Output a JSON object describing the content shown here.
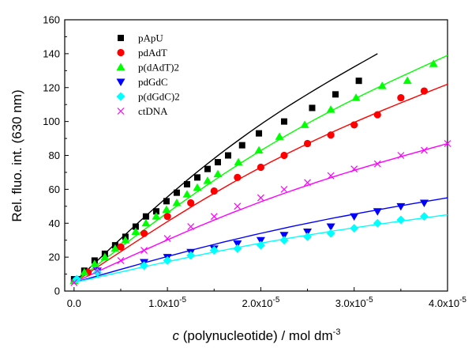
{
  "chart_data": {
    "type": "scatter",
    "title": "",
    "xlabel": {
      "symbol": "c",
      "rest": " (polynucleotide) / mol dm",
      "sup": "-3"
    },
    "ylabel": "Rel. fluo. int. (630 nm)",
    "xlim": [
      -1e-06,
      4e-05
    ],
    "ylim": [
      0,
      160
    ],
    "x_ticks": [
      {
        "value": 0,
        "mant": "0.0",
        "exp": ""
      },
      {
        "value": 1e-05,
        "mant": "1.0x10",
        "exp": "-5"
      },
      {
        "value": 2e-05,
        "mant": "2.0x10",
        "exp": "-5"
      },
      {
        "value": 3e-05,
        "mant": "3.0x10",
        "exp": "-5"
      },
      {
        "value": 4e-05,
        "mant": "4.0x10",
        "exp": "-5"
      }
    ],
    "y_ticks": [
      0,
      20,
      40,
      60,
      80,
      100,
      120,
      140,
      160
    ],
    "grid": false,
    "legend_position": "top-left",
    "series": [
      {
        "name": "pApU",
        "marker": "square",
        "color": "#000000",
        "x": [
          0,
          1.1e-06,
          2.2e-06,
          3.3e-06,
          4.4e-06,
          5.5e-06,
          6.6e-06,
          7.7e-06,
          8.8e-06,
          9.9e-06,
          1.1e-05,
          1.21e-05,
          1.32e-05,
          1.43e-05,
          1.54e-05,
          1.65e-05,
          1.8e-05,
          1.98e-05,
          2.25e-05,
          2.55e-05,
          2.8e-05,
          3.05e-05
        ],
        "y": [
          7,
          12,
          18,
          22,
          27,
          32,
          38,
          44,
          47,
          53,
          58,
          63,
          67,
          72,
          76,
          80,
          86,
          93,
          100,
          108,
          116,
          124
        ],
        "fit_x": [
          0,
          3.25e-05
        ],
        "fit_y": [
          5,
          140
        ]
      },
      {
        "name": "pdAdT",
        "marker": "circle",
        "color": "#ff0000",
        "x": [
          1.5e-06,
          5e-06,
          7.5e-06,
          1e-05,
          1.25e-05,
          1.5e-05,
          1.75e-05,
          2e-05,
          2.25e-05,
          2.5e-05,
          2.75e-05,
          3e-05,
          3.25e-05,
          3.5e-05,
          3.75e-05
        ],
        "y": [
          11,
          26,
          34,
          44,
          52,
          59,
          67,
          73,
          80,
          87,
          92,
          98,
          104,
          114,
          118
        ],
        "fit_x": [
          0,
          4e-05
        ],
        "fit_y": [
          5,
          122
        ]
      },
      {
        "name": "p(dAdT)2",
        "marker": "triangle-up",
        "color": "#00ff00",
        "x": [
          0,
          1.1e-06,
          2.2e-06,
          3.3e-06,
          4.4e-06,
          5.5e-06,
          6.6e-06,
          7.7e-06,
          8.8e-06,
          9.9e-06,
          1.1e-05,
          1.21e-05,
          1.32e-05,
          1.43e-05,
          1.54e-05,
          1.76e-05,
          1.98e-05,
          2.2e-05,
          2.47e-05,
          2.75e-05,
          3.02e-05,
          3.3e-05,
          3.57e-05,
          3.85e-05
        ],
        "y": [
          6,
          11,
          16,
          20,
          25,
          30,
          35,
          40,
          44,
          48,
          52,
          57,
          61,
          65,
          69,
          76,
          83,
          91,
          98,
          107,
          114,
          121,
          124,
          134
        ],
        "fit_x": [
          0,
          4e-05
        ],
        "fit_y": [
          5,
          139
        ]
      },
      {
        "name": "pdGdC",
        "marker": "triangle-down",
        "color": "#0000ff",
        "x": [
          3e-07,
          2.5e-06,
          7.5e-06,
          1e-05,
          1.25e-05,
          1.5e-05,
          1.75e-05,
          2e-05,
          2.25e-05,
          2.5e-05,
          2.75e-05,
          3e-05,
          3.25e-05,
          3.5e-05,
          3.75e-05
        ],
        "y": [
          7,
          12,
          17,
          20,
          23,
          25,
          28,
          30,
          33,
          35,
          38,
          44,
          47,
          50,
          52
        ],
        "fit_x": [
          0,
          4e-05
        ],
        "fit_y": [
          5,
          55
        ]
      },
      {
        "name": "p(dGdC)2",
        "marker": "diamond",
        "color": "#00ffff",
        "x": [
          3e-07,
          2.5e-06,
          7.5e-06,
          1e-05,
          1.25e-05,
          1.5e-05,
          1.75e-05,
          2e-05,
          2.25e-05,
          2.5e-05,
          2.75e-05,
          3e-05,
          3.25e-05,
          3.5e-05,
          3.75e-05
        ],
        "y": [
          7,
          11,
          15,
          18,
          21,
          24,
          25,
          27,
          30,
          32,
          34,
          37,
          40,
          42,
          44
        ],
        "fit_x": [
          0,
          4e-05
        ],
        "fit_y": [
          5,
          45
        ]
      },
      {
        "name": "ctDNA",
        "marker": "x",
        "color": "#ff00ff",
        "x": [
          0,
          2.5e-06,
          5e-06,
          7.5e-06,
          1e-05,
          1.25e-05,
          1.5e-05,
          1.75e-05,
          2e-05,
          2.25e-05,
          2.5e-05,
          2.75e-05,
          3e-05,
          3.25e-05,
          3.5e-05,
          3.75e-05,
          4e-05
        ],
        "y": [
          5,
          12,
          18,
          24,
          31,
          38,
          44,
          50,
          55,
          60,
          64,
          68,
          72,
          75,
          80,
          83,
          87
        ],
        "fit_x": [
          0,
          4e-05
        ],
        "fit_y": [
          5,
          87
        ]
      }
    ]
  }
}
